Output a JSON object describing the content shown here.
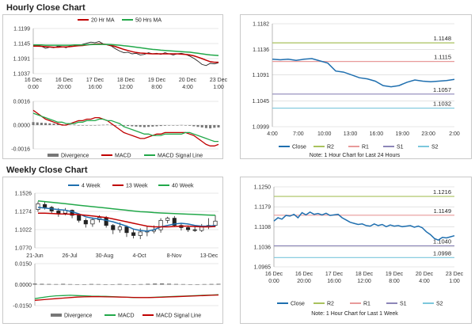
{
  "sections": {
    "hourly_title": "Hourly Close Chart",
    "weekly_title": "Weekly Close Chart"
  },
  "colors": {
    "close": "#1f6faf",
    "ma_short": "#c00000",
    "ma_long": "#22a84a",
    "r2": "#a9c25d",
    "r1": "#e89a9a",
    "s1": "#8d86b8",
    "s2": "#7cc7dc",
    "grid": "#d0d0d0",
    "bar": "#777777",
    "macd": "#c00000",
    "signal": "#22a84a"
  },
  "chart_data": [
    {
      "id": "hourly-price",
      "type": "line",
      "legend": [
        "20 Hr MA",
        "50 Hrs MA"
      ],
      "yticks": [
        "1.1199",
        "1.1145",
        "1.1091",
        "1.1037"
      ],
      "ylim": [
        1.1037,
        1.1199
      ],
      "x_labels": [
        [
          "16 Dec",
          "0:00"
        ],
        [
          "16 Dec",
          "20:00"
        ],
        [
          "17 Dec",
          "16:00"
        ],
        [
          "18 Dec",
          "12:00"
        ],
        [
          "19 Dec",
          "8:00"
        ],
        [
          "20 Dec",
          "4:00"
        ],
        [
          "23 Dec",
          "1:00"
        ]
      ],
      "close": [
        1.114,
        1.1138,
        1.1135,
        1.1128,
        1.1132,
        1.113,
        1.1136,
        1.1134,
        1.113,
        1.1138,
        1.114,
        1.1137,
        1.1142,
        1.1146,
        1.115,
        1.1148,
        1.1152,
        1.1144,
        1.114,
        1.1136,
        1.1126,
        1.1118,
        1.1112,
        1.1114,
        1.1108,
        1.111,
        1.1104,
        1.1106,
        1.1112,
        1.1108,
        1.111,
        1.1106,
        1.1112,
        1.1108,
        1.1104,
        1.1108,
        1.111,
        1.1106,
        1.11,
        1.1092,
        1.1082,
        1.107,
        1.1066,
        1.1074,
        1.1072,
        1.1076
      ],
      "series": [
        {
          "name": "20 Hr MA",
          "values": [
            1.1136,
            1.1136,
            1.1135,
            1.1134,
            1.1133,
            1.1132,
            1.1132,
            1.1133,
            1.1133,
            1.1134,
            1.1136,
            1.1137,
            1.1138,
            1.114,
            1.1142,
            1.1143,
            1.1144,
            1.1143,
            1.1141,
            1.1138,
            1.1134,
            1.1129,
            1.1124,
            1.112,
            1.1116,
            1.1113,
            1.1111,
            1.111,
            1.1109,
            1.1108,
            1.1108,
            1.1108,
            1.1108,
            1.1108,
            1.1108,
            1.1108,
            1.1107,
            1.1106,
            1.1104,
            1.1101,
            1.1096,
            1.1091,
            1.1085,
            1.108,
            1.1078,
            1.1078
          ]
        },
        {
          "name": "50 Hrs MA",
          "values": [
            1.114,
            1.114,
            1.114,
            1.1139,
            1.1139,
            1.1139,
            1.1139,
            1.1139,
            1.1139,
            1.1139,
            1.114,
            1.114,
            1.114,
            1.1141,
            1.1141,
            1.1142,
            1.1142,
            1.1142,
            1.1142,
            1.1141,
            1.114,
            1.1139,
            1.1137,
            1.1136,
            1.1134,
            1.1132,
            1.113,
            1.1128,
            1.1126,
            1.1124,
            1.1123,
            1.1121,
            1.112,
            1.1119,
            1.1118,
            1.1117,
            1.1116,
            1.1115,
            1.1114,
            1.1112,
            1.111,
            1.1108,
            1.1106,
            1.1104,
            1.1103,
            1.1102
          ]
        }
      ]
    },
    {
      "id": "hourly-macd",
      "type": "bar",
      "legend": [
        "Divergence",
        "MACD",
        "MACD Signal Line"
      ],
      "yticks": [
        "0.0016",
        "0.0000",
        "-0.0016"
      ],
      "ylim": [
        -0.0016,
        0.0016
      ],
      "divergence": [
        0.0002,
        0.00018,
        0.00016,
        0.00014,
        0.00012,
        0.0001,
        8e-05,
        6e-05,
        4e-05,
        3e-05,
        2e-05,
        0.0,
        -2e-05,
        -3e-05,
        -2e-05,
        -1e-05,
        1e-05,
        2e-05,
        3e-05,
        2e-05,
        0.0,
        -2e-05,
        -4e-05,
        -6e-05,
        -8e-05,
        -0.0001,
        -0.00012,
        -0.00014,
        -0.00012,
        -0.0001,
        -8e-05,
        -6e-05,
        -4e-05,
        -2e-05,
        -1e-05,
        0.0,
        1e-05,
        0.0,
        -4e-05,
        -8e-05,
        -0.00012,
        -0.00016,
        -0.0002,
        -0.00022,
        -0.00018,
        -0.00016
      ],
      "series": [
        {
          "name": "MACD",
          "values": [
            0.001,
            0.0008,
            0.0006,
            0.0004,
            0.0003,
            0.0002,
            0.0001,
            0.0,
            0.0,
            0.0001,
            0.0002,
            0.0003,
            0.0003,
            0.0004,
            0.0004,
            0.0005,
            0.0005,
            0.0004,
            0.0003,
            0.0001,
            -0.0001,
            -0.0003,
            -0.0005,
            -0.0006,
            -0.0007,
            -0.0008,
            -0.0009,
            -0.0009,
            -0.0008,
            -0.0007,
            -0.0006,
            -0.0006,
            -0.0005,
            -0.0005,
            -0.0005,
            -0.0005,
            -0.0005,
            -0.0005,
            -0.0006,
            -0.0007,
            -0.0009,
            -0.0011,
            -0.0013,
            -0.0014,
            -0.0014,
            -0.0013
          ]
        },
        {
          "name": "MACD Signal Line",
          "values": [
            0.0008,
            0.0007,
            0.0006,
            0.0005,
            0.0004,
            0.0003,
            0.0002,
            0.0002,
            0.0001,
            0.0001,
            0.0001,
            0.0002,
            0.0002,
            0.0003,
            0.0003,
            0.0003,
            0.0004,
            0.0004,
            0.0003,
            0.0003,
            0.0002,
            0.0001,
            -0.0001,
            -0.0002,
            -0.0003,
            -0.0004,
            -0.0005,
            -0.0006,
            -0.0006,
            -0.0007,
            -0.0007,
            -0.0007,
            -0.0006,
            -0.0006,
            -0.0006,
            -0.0006,
            -0.0006,
            -0.0005,
            -0.0005,
            -0.0006,
            -0.0007,
            -0.0008,
            -0.0009,
            -0.001,
            -0.0011,
            -0.0011
          ]
        }
      ]
    },
    {
      "id": "hourly-levels",
      "type": "line",
      "yticks": [
        "1.1182",
        "1.1136",
        "1.1091",
        "1.1045",
        "1.0999"
      ],
      "ylim": [
        1.0999,
        1.1182
      ],
      "x_labels": [
        "4:00",
        "7:00",
        "10:00",
        "13:00",
        "16:00",
        "19:00",
        "23:00",
        "2:00"
      ],
      "levels": {
        "R2": 1.1148,
        "R1": 1.1115,
        "S1": 1.1057,
        "S2": 1.1032
      },
      "level_labels": {
        "R2": "1.1148",
        "R1": "1.1115",
        "S1": "1.1057",
        "S2": "1.1032"
      },
      "close": [
        1.1119,
        1.1118,
        1.1119,
        1.1117,
        1.1119,
        1.112,
        1.1116,
        1.1112,
        1.1098,
        1.1096,
        1.1091,
        1.1086,
        1.1084,
        1.108,
        1.1072,
        1.107,
        1.1072,
        1.1078,
        1.1082,
        1.108,
        1.1079,
        1.108,
        1.1081,
        1.1083
      ],
      "legend": [
        "Close",
        "R2",
        "R1",
        "S1",
        "S2"
      ],
      "note": "Note: 1 Hour Chart for Last 24 Hours"
    },
    {
      "id": "weekly-price",
      "type": "line",
      "legend": [
        "4 Week",
        "13 Week",
        "40 Week"
      ],
      "yticks": [
        "1.1526",
        "1.1274",
        "1.1022",
        "1.0770"
      ],
      "ylim": [
        1.077,
        1.1526
      ],
      "x_labels": [
        "21-Jun",
        "26-Jul",
        "30-Aug",
        "4-Oct",
        "8-Nov",
        "13-Dec"
      ],
      "candles": [
        {
          "o": 1.13,
          "c": 1.138,
          "h": 1.141,
          "l": 1.127
        },
        {
          "o": 1.137,
          "c": 1.133,
          "h": 1.1412,
          "l": 1.13
        },
        {
          "o": 1.133,
          "c": 1.128,
          "h": 1.135,
          "l": 1.124
        },
        {
          "o": 1.128,
          "c": 1.125,
          "h": 1.132,
          "l": 1.12
        },
        {
          "o": 1.125,
          "c": 1.129,
          "h": 1.132,
          "l": 1.122
        },
        {
          "o": 1.129,
          "c": 1.122,
          "h": 1.13,
          "l": 1.118
        },
        {
          "o": 1.122,
          "c": 1.115,
          "h": 1.124,
          "l": 1.112
        },
        {
          "o": 1.115,
          "c": 1.11,
          "h": 1.118,
          "l": 1.105
        },
        {
          "o": 1.11,
          "c": 1.116,
          "h": 1.119,
          "l": 1.106
        },
        {
          "o": 1.116,
          "c": 1.119,
          "h": 1.122,
          "l": 1.112
        },
        {
          "o": 1.119,
          "c": 1.108,
          "h": 1.121,
          "l": 1.105
        },
        {
          "o": 1.108,
          "c": 1.102,
          "h": 1.11,
          "l": 1.096
        },
        {
          "o": 1.102,
          "c": 1.106,
          "h": 1.112,
          "l": 1.098
        },
        {
          "o": 1.106,
          "c": 1.098,
          "h": 1.108,
          "l": 1.092
        },
        {
          "o": 1.098,
          "c": 1.094,
          "h": 1.102,
          "l": 1.09
        },
        {
          "o": 1.094,
          "c": 1.099,
          "h": 1.104,
          "l": 1.089
        },
        {
          "o": 1.099,
          "c": 1.1,
          "h": 1.107,
          "l": 1.093
        },
        {
          "o": 1.1,
          "c": 1.102,
          "h": 1.108,
          "l": 1.097
        },
        {
          "o": 1.102,
          "c": 1.115,
          "h": 1.118,
          "l": 1.098
        },
        {
          "o": 1.115,
          "c": 1.118,
          "h": 1.12,
          "l": 1.111
        },
        {
          "o": 1.118,
          "c": 1.108,
          "h": 1.121,
          "l": 1.106
        },
        {
          "o": 1.108,
          "c": 1.105,
          "h": 1.111,
          "l": 1.101
        },
        {
          "o": 1.105,
          "c": 1.102,
          "h": 1.108,
          "l": 1.099
        },
        {
          "o": 1.102,
          "c": 1.101,
          "h": 1.106,
          "l": 1.099
        },
        {
          "o": 1.101,
          "c": 1.106,
          "h": 1.11,
          "l": 1.099
        },
        {
          "o": 1.106,
          "c": 1.108,
          "h": 1.118,
          "l": 1.103
        },
        {
          "o": 1.108,
          "c": 1.114,
          "h": 1.122,
          "l": 1.106
        }
      ],
      "series": [
        {
          "name": "4 Week",
          "values": [
            1.133,
            1.132,
            1.131,
            1.13,
            1.129,
            1.127,
            1.124,
            1.12,
            1.118,
            1.117,
            1.115,
            1.113,
            1.11,
            1.107,
            1.103,
            1.101,
            1.1,
            1.102,
            1.106,
            1.108,
            1.11,
            1.111,
            1.11,
            1.108,
            1.107,
            1.107,
            1.108
          ]
        },
        {
          "name": "13 Week",
          "values": [
            1.125,
            1.125,
            1.1245,
            1.124,
            1.1238,
            1.1235,
            1.123,
            1.122,
            1.121,
            1.12,
            1.119,
            1.117,
            1.115,
            1.113,
            1.111,
            1.109,
            1.107,
            1.106,
            1.106,
            1.106,
            1.1065,
            1.107,
            1.107,
            1.1065,
            1.106,
            1.106,
            1.1065
          ]
        },
        {
          "name": "40 Week",
          "values": [
            1.142,
            1.141,
            1.14,
            1.139,
            1.138,
            1.137,
            1.136,
            1.135,
            1.134,
            1.133,
            1.132,
            1.131,
            1.13,
            1.129,
            1.128,
            1.127,
            1.1265,
            1.1258,
            1.1252,
            1.1248,
            1.1244,
            1.124,
            1.1236,
            1.1232,
            1.1228,
            1.1224,
            1.122
          ]
        }
      ]
    },
    {
      "id": "weekly-macd",
      "type": "bar",
      "legend": [
        "Divergence",
        "MACD",
        "MACD Signal Line"
      ],
      "yticks": [
        "0.0150",
        "0.0000",
        "-0.0150"
      ],
      "ylim": [
        -0.015,
        0.015
      ],
      "divergence": [
        0.0008,
        0.0006,
        0.0005,
        0.0004,
        0.0006,
        0.0004,
        0.0003,
        0.0002,
        0.0005,
        0.0004,
        0.0002,
        0.0003,
        0.0005,
        0.0003,
        0.0002,
        0.0004,
        0.0006,
        0.0008,
        0.0009,
        0.0007,
        0.0005,
        0.0004,
        0.0003,
        0.0002,
        0.0004,
        0.0005,
        0.0006
      ],
      "series": [
        {
          "name": "MACD",
          "values": [
            -0.01,
            -0.0092,
            -0.0085,
            -0.008,
            -0.0078,
            -0.0076,
            -0.0078,
            -0.008,
            -0.0082,
            -0.0083,
            -0.0084,
            -0.0086,
            -0.0088,
            -0.009,
            -0.0092,
            -0.0093,
            -0.0092,
            -0.009,
            -0.0088,
            -0.0086,
            -0.0084,
            -0.0082,
            -0.008,
            -0.0078,
            -0.0076,
            -0.0074,
            -0.0072
          ]
        },
        {
          "name": "MACD Signal Line",
          "values": [
            -0.0112,
            -0.0108,
            -0.0104,
            -0.01,
            -0.0096,
            -0.0092,
            -0.0089,
            -0.0087,
            -0.0086,
            -0.0086,
            -0.0087,
            -0.0088,
            -0.0089,
            -0.009,
            -0.0091,
            -0.0092,
            -0.0092,
            -0.0091,
            -0.009,
            -0.0088,
            -0.0086,
            -0.0084,
            -0.0082,
            -0.008,
            -0.0078,
            -0.0076,
            -0.0074
          ]
        }
      ]
    },
    {
      "id": "weekly-levels",
      "type": "line",
      "yticks": [
        "1.1250",
        "1.1179",
        "1.1108",
        "1.1036",
        "1.0965"
      ],
      "ylim": [
        1.0965,
        1.125
      ],
      "x_labels": [
        [
          "16 Dec",
          "0:00"
        ],
        [
          "16 Dec",
          "20:00"
        ],
        [
          "17 Dec",
          "16:00"
        ],
        [
          "18 Dec",
          "12:00"
        ],
        [
          "19 Dec",
          "8:00"
        ],
        [
          "20 Dec",
          "4:00"
        ],
        [
          "23 Dec",
          "1:00"
        ]
      ],
      "levels": {
        "R2": 1.1216,
        "R1": 1.1149,
        "S1": 1.104,
        "S2": 1.0998
      },
      "level_labels": {
        "R2": "1.1216",
        "R1": "1.1149",
        "S1": "1.1040",
        "S2": "1.0998"
      },
      "close": [
        1.1128,
        1.114,
        1.1135,
        1.1148,
        1.1146,
        1.1152,
        1.114,
        1.1158,
        1.115,
        1.116,
        1.1152,
        1.1155,
        1.115,
        1.1156,
        1.1148,
        1.115,
        1.1152,
        1.114,
        1.1132,
        1.1124,
        1.112,
        1.1116,
        1.1118,
        1.1112,
        1.111,
        1.1118,
        1.1112,
        1.1116,
        1.1108,
        1.1114,
        1.111,
        1.1112,
        1.1108,
        1.111,
        1.1112,
        1.1106,
        1.111,
        1.1104,
        1.109,
        1.108,
        1.1066,
        1.106,
        1.107,
        1.1068,
        1.1072,
        1.1076
      ],
      "legend": [
        "Close",
        "R2",
        "R1",
        "S1",
        "S2"
      ],
      "note": "Note: 1 Hour Chart for Last 1 Week"
    }
  ]
}
